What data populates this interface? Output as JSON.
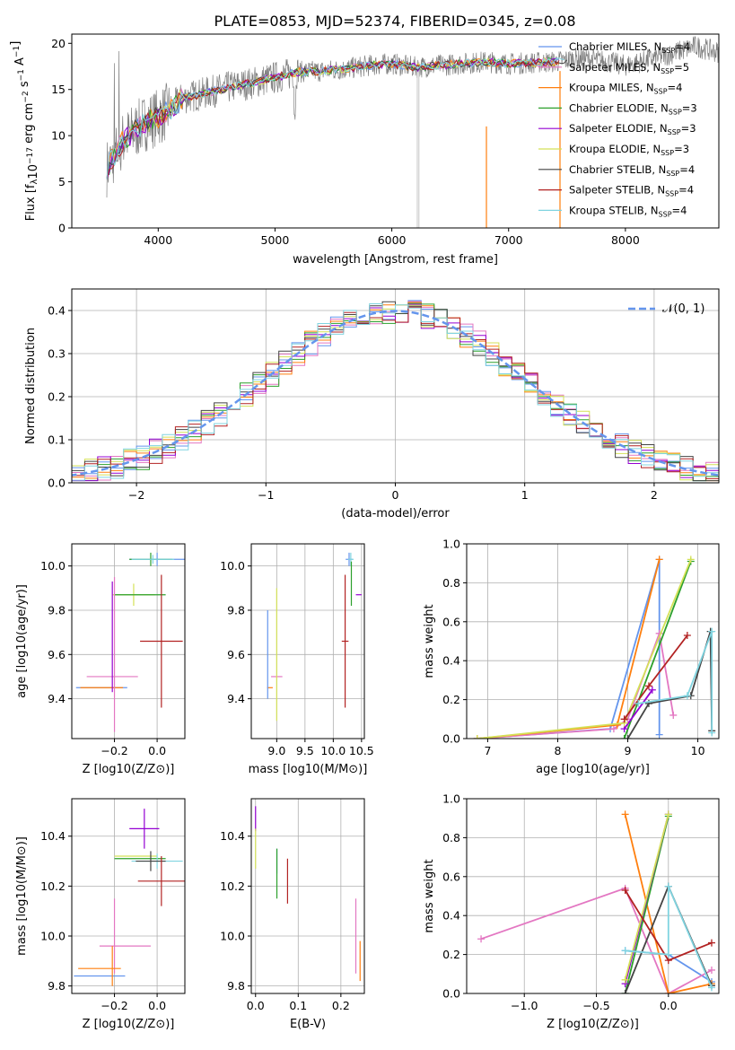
{
  "figure_title": "PLATE=0853, MJD=52374, FIBERID=0345, z=0.08",
  "chart_data": [
    {
      "type": "line",
      "panel": "spectrum",
      "xlabel": "wavelength [Angstrom, rest frame]",
      "ylabel": "Flux [f_λ 10^-17 erg cm^-2 s^-1 A^-1]",
      "xlim": [
        3260,
        8800
      ],
      "ylim": [
        0,
        21
      ],
      "xticks": [
        4000,
        5000,
        6000,
        7000,
        8000
      ],
      "yticks": [
        0,
        5,
        10,
        15,
        20
      ],
      "grid": false,
      "legend_position": "top-right",
      "data_series": {
        "name": "data",
        "color": "#808080",
        "x": [
          3560,
          3620,
          3700,
          3800,
          3900,
          4000,
          4100,
          4200,
          4400,
          4600,
          4800,
          5000,
          5200,
          5400,
          5600,
          5800,
          6000,
          6200,
          6400,
          6600,
          6800,
          7000,
          7200,
          7400,
          7600,
          7800,
          8000,
          8200,
          8400,
          8600,
          8800
        ],
        "y": [
          6.5,
          7.8,
          9.5,
          10.5,
          11.5,
          12.0,
          12.8,
          14.0,
          14.6,
          15.2,
          15.7,
          16.3,
          16.9,
          17.0,
          17.2,
          17.6,
          17.8,
          17.4,
          17.6,
          17.8,
          18.0,
          17.8,
          17.9,
          18.0,
          18.4,
          18.1,
          17.6,
          18.2,
          18.9,
          19.7,
          19.0
        ]
      },
      "series": [
        {
          "name": "Chabrier MILES",
          "nssp": "4",
          "color": "#6495ED"
        },
        {
          "name": "Salpeter MILES",
          "nssp": "5",
          "color": "#e377c2"
        },
        {
          "name": "Kroupa MILES",
          "nssp": "4",
          "color": "#ff7f0e"
        },
        {
          "name": "Chabrier ELODIE",
          "nssp": "3",
          "color": "#2ca02c"
        },
        {
          "name": "Salpeter ELODIE",
          "nssp": "3",
          "color": "#9400D3"
        },
        {
          "name": "Kroupa ELODIE",
          "nssp": "3",
          "color": "#d4e157"
        },
        {
          "name": "Chabrier STELIB",
          "nssp": "4",
          "color": "#444444"
        },
        {
          "name": "Salpeter STELIB",
          "nssp": "4",
          "color": "#b22222"
        },
        {
          "name": "Kroupa STELIB",
          "nssp": "4",
          "color": "#80d4e0"
        }
      ]
    },
    {
      "type": "histogram",
      "panel": "residuals",
      "xlabel": "(data-model)/error",
      "ylabel": "Normed distribution",
      "xlim": [
        -2.5,
        2.5
      ],
      "ylim": [
        0,
        0.45
      ],
      "xticks": [
        -2,
        -1,
        0,
        1,
        2
      ],
      "yticks": [
        0.0,
        0.1,
        0.2,
        0.3,
        0.4
      ],
      "grid": true,
      "legend": "𝒩(0, 1)",
      "legend_position": "top-right",
      "bin_width": 0.1,
      "curve_color": "#6495ED"
    },
    {
      "type": "scatter",
      "panel": "age-vs-Z",
      "xlabel": "Z [log10(Z/Z⊙)]",
      "ylabel": "age [log10(age/yr)]",
      "xlim": [
        -0.4,
        0.13
      ],
      "ylim": [
        9.22,
        10.1
      ],
      "xticks": [
        -0.2,
        0.0
      ],
      "yticks": [
        9.4,
        9.6,
        9.8,
        10.0
      ],
      "grid": true,
      "points": [
        {
          "x": 0.0,
          "y": 10.03,
          "xerr": 0.13,
          "yerr": 0.03,
          "color": "#6495ED"
        },
        {
          "x": -0.03,
          "y": 10.03,
          "xerr": 0.1,
          "yerr": 0.03,
          "color": "#2ca02c"
        },
        {
          "x": -0.02,
          "y": 10.03,
          "xerr": 0.1,
          "yerr": 0.02,
          "color": "#80d4e0"
        },
        {
          "x": -0.11,
          "y": 9.87,
          "xerr": 0.1,
          "yerr": 0.05,
          "color": "#d4e157"
        },
        {
          "x": -0.08,
          "y": 9.87,
          "xerr": 0.12,
          "yerr": 0.0,
          "color": "#2ca02c"
        },
        {
          "x": 0.02,
          "y": 9.66,
          "xerr": 0.1,
          "yerr": 0.3,
          "color": "#b22222"
        },
        {
          "x": -0.21,
          "y": 9.5,
          "xerr": 0.12,
          "yerr": 0.0,
          "color": "#e377c2"
        },
        {
          "x": -0.26,
          "y": 9.45,
          "xerr": 0.12,
          "yerr": 0.0,
          "color": "#6495ED"
        },
        {
          "x": -0.26,
          "y": 9.45,
          "xerr": 0.1,
          "yerr": 0.0,
          "color": "#ff7f0e"
        },
        {
          "x": -0.2,
          "y": 9.6,
          "xerr": 0.0,
          "yerr": 0.35,
          "color": "#e377c2"
        },
        {
          "x": -0.21,
          "y": 9.68,
          "xerr": 0.0,
          "yerr": 0.25,
          "color": "#9400D3"
        }
      ]
    },
    {
      "type": "scatter",
      "panel": "age-vs-mass",
      "xlabel": "mass [log10(M/M⊙)]",
      "ylabel": "",
      "xlim": [
        8.55,
        10.55
      ],
      "ylim": [
        9.22,
        10.1
      ],
      "xticks": [
        9.0,
        9.5,
        10.0,
        10.5
      ],
      "yticks": [
        9.4,
        9.6,
        9.8,
        10.0
      ],
      "grid": true,
      "points": [
        {
          "x": 10.28,
          "y": 10.03,
          "xerr": 0.06,
          "yerr": 0.03,
          "color": "#6495ED"
        },
        {
          "x": 10.31,
          "y": 10.03,
          "xerr": 0.05,
          "yerr": 0.03,
          "color": "#80d4e0"
        },
        {
          "x": 10.32,
          "y": 9.92,
          "xerr": 0.0,
          "yerr": 0.1,
          "color": "#2ca02c"
        },
        {
          "x": 10.45,
          "y": 9.87,
          "xerr": 0.05,
          "yerr": 0.0,
          "color": "#9400D3"
        },
        {
          "x": 10.21,
          "y": 9.66,
          "xerr": 0.06,
          "yerr": 0.3,
          "color": "#b22222"
        },
        {
          "x": 9.0,
          "y": 9.5,
          "xerr": 0.1,
          "yerr": 0.0,
          "color": "#e377c2"
        },
        {
          "x": 8.88,
          "y": 9.45,
          "xerr": 0.05,
          "yerr": 0.0,
          "color": "#ff7f0e"
        },
        {
          "x": 8.84,
          "y": 9.6,
          "xerr": 0.0,
          "yerr": 0.2,
          "color": "#6495ED"
        },
        {
          "x": 9.0,
          "y": 9.6,
          "xerr": 0.0,
          "yerr": 0.3,
          "color": "#d4e157"
        }
      ]
    },
    {
      "type": "line",
      "panel": "mass-weight-vs-age",
      "xlabel": "age [log10(age/yr)]",
      "ylabel": "mass weight",
      "xlim": [
        6.7,
        10.3
      ],
      "ylim": [
        0,
        1.0
      ],
      "xticks": [
        7,
        8,
        9,
        10
      ],
      "yticks": [
        0.0,
        0.2,
        0.4,
        0.6,
        0.8,
        1.0
      ],
      "grid": true,
      "series": [
        {
          "name": "Chabrier MILES",
          "color": "#6495ED",
          "x": [
            6.85,
            8.75,
            9.45,
            9.45
          ],
          "y": [
            0.0,
            0.05,
            0.92,
            0.02
          ]
        },
        {
          "name": "Salpeter MILES",
          "color": "#e377c2",
          "x": [
            6.85,
            8.8,
            9.0,
            9.45,
            9.65
          ],
          "y": [
            0.0,
            0.05,
            0.1,
            0.54,
            0.12
          ]
        },
        {
          "name": "Kroupa MILES",
          "color": "#ff7f0e",
          "x": [
            6.85,
            8.85,
            9.45
          ],
          "y": [
            0.0,
            0.07,
            0.92
          ]
        },
        {
          "name": "Chabrier ELODIE",
          "color": "#2ca02c",
          "x": [
            8.95,
            9.9
          ],
          "y": [
            0.0,
            0.91
          ]
        },
        {
          "name": "Salpeter ELODIE",
          "color": "#9400D3",
          "x": [
            8.95,
            9.35
          ],
          "y": [
            0.05,
            0.25
          ]
        },
        {
          "name": "Kroupa ELODIE",
          "color": "#d4e157",
          "x": [
            6.85,
            8.95,
            9.9
          ],
          "y": [
            0.0,
            0.08,
            0.92
          ]
        },
        {
          "name": "Chabrier STELIB",
          "color": "#444444",
          "x": [
            9.0,
            9.3,
            9.9,
            10.18,
            10.2
          ],
          "y": [
            0.0,
            0.18,
            0.22,
            0.55,
            0.04
          ]
        },
        {
          "name": "Salpeter STELIB",
          "color": "#b22222",
          "x": [
            8.95,
            9.3,
            9.85
          ],
          "y": [
            0.1,
            0.27,
            0.53
          ]
        },
        {
          "name": "Kroupa STELIB",
          "color": "#80d4e0",
          "x": [
            9.15,
            9.85,
            10.2,
            10.2
          ],
          "y": [
            0.18,
            0.22,
            0.55,
            0.03
          ]
        }
      ]
    },
    {
      "type": "scatter",
      "panel": "mass-vs-Z",
      "xlabel": "Z [log10(Z/Z⊙)]",
      "ylabel": "mass [log10(M/M⊙)]",
      "xlim": [
        -0.4,
        0.13
      ],
      "ylim": [
        9.77,
        10.55
      ],
      "xticks": [
        -0.2,
        0.0
      ],
      "yticks": [
        9.8,
        10.0,
        10.2,
        10.4
      ],
      "grid": true,
      "points": [
        {
          "x": -0.06,
          "y": 10.43,
          "xerr": 0.07,
          "yerr": 0.08,
          "color": "#9400D3"
        },
        {
          "x": -0.1,
          "y": 10.32,
          "xerr": 0.1,
          "yerr": 0.0,
          "color": "#d4e157"
        },
        {
          "x": -0.08,
          "y": 10.31,
          "xerr": 0.12,
          "yerr": 0.0,
          "color": "#2ca02c"
        },
        {
          "x": 0.0,
          "y": 10.3,
          "xerr": 0.12,
          "yerr": 0.03,
          "color": "#80d4e0"
        },
        {
          "x": -0.03,
          "y": 10.3,
          "xerr": 0.07,
          "yerr": 0.04,
          "color": "#444444"
        },
        {
          "x": 0.02,
          "y": 10.22,
          "xerr": 0.11,
          "yerr": 0.1,
          "color": "#b22222"
        },
        {
          "x": -0.2,
          "y": 10.0,
          "xerr": 0.0,
          "yerr": 0.15,
          "color": "#e377c2"
        },
        {
          "x": -0.15,
          "y": 9.96,
          "xerr": 0.12,
          "yerr": 0.0,
          "color": "#e377c2"
        },
        {
          "x": -0.27,
          "y": 9.87,
          "xerr": 0.1,
          "yerr": 0.0,
          "color": "#ff7f0e"
        },
        {
          "x": -0.27,
          "y": 9.84,
          "xerr": 0.12,
          "yerr": 0.0,
          "color": "#6495ED"
        },
        {
          "x": -0.21,
          "y": 9.88,
          "xerr": 0.0,
          "yerr": 0.08,
          "color": "#ff7f0e"
        }
      ]
    },
    {
      "type": "scatter",
      "panel": "mass-vs-EBV",
      "xlabel": "E(B-V)",
      "ylabel": "",
      "xlim": [
        -0.01,
        0.255
      ],
      "ylim": [
        9.77,
        10.55
      ],
      "xticks": [
        0.0,
        0.1,
        0.2
      ],
      "yticks": [
        9.8,
        10.0,
        10.2,
        10.4
      ],
      "grid": true,
      "points": [
        {
          "x": 0.0,
          "y": 10.47,
          "xerr": 0.0,
          "yerr": 0.05,
          "color": "#9400D3"
        },
        {
          "x": 0.0,
          "y": 10.35,
          "xerr": 0.0,
          "yerr": 0.08,
          "color": "#d4e157"
        },
        {
          "x": 0.05,
          "y": 10.3,
          "xerr": 0.0,
          "yerr": 0.05,
          "color": "#6495ED"
        },
        {
          "x": 0.05,
          "y": 10.25,
          "xerr": 0.0,
          "yerr": 0.1,
          "color": "#2ca02c"
        },
        {
          "x": 0.075,
          "y": 10.22,
          "xerr": 0.0,
          "yerr": 0.09,
          "color": "#b22222"
        },
        {
          "x": 0.235,
          "y": 10.0,
          "xerr": 0.0,
          "yerr": 0.15,
          "color": "#e377c2"
        },
        {
          "x": 0.245,
          "y": 9.9,
          "xerr": 0.0,
          "yerr": 0.08,
          "color": "#ff7f0e"
        }
      ]
    },
    {
      "type": "line",
      "panel": "mass-weight-vs-Z",
      "xlabel": "Z [log10(Z/Z⊙)]",
      "ylabel": "mass weight",
      "xlim": [
        -1.4,
        0.35
      ],
      "ylim": [
        0,
        1.0
      ],
      "xticks": [
        -1.0,
        -0.5,
        0.0
      ],
      "yticks": [
        0.0,
        0.2,
        0.4,
        0.6,
        0.8,
        1.0
      ],
      "grid": true,
      "series": [
        {
          "name": "Chabrier MILES",
          "color": "#6495ED",
          "x": [
            -0.3,
            0.0,
            0.3
          ],
          "y": [
            0.22,
            0.2,
            0.06
          ]
        },
        {
          "name": "Salpeter MILES",
          "color": "#e377c2",
          "x": [
            -1.3,
            -0.3,
            0.0,
            0.3
          ],
          "y": [
            0.28,
            0.54,
            0.0,
            0.12
          ]
        },
        {
          "name": "Kroupa MILES",
          "color": "#ff7f0e",
          "x": [
            -0.3,
            0.0,
            0.3
          ],
          "y": [
            0.92,
            0.0,
            0.05
          ]
        },
        {
          "name": "Chabrier ELODIE",
          "color": "#2ca02c",
          "x": [
            -0.3,
            0.0
          ],
          "y": [
            0.0,
            0.91
          ]
        },
        {
          "name": "Salpeter ELODIE",
          "color": "#9400D3",
          "x": [
            -0.3,
            0.0
          ],
          "y": [
            0.05,
            0.92
          ]
        },
        {
          "name": "Kroupa ELODIE",
          "color": "#d4e157",
          "x": [
            -0.3,
            0.0
          ],
          "y": [
            0.07,
            0.92
          ]
        },
        {
          "name": "Chabrier STELIB",
          "color": "#444444",
          "x": [
            -0.3,
            0.0,
            0.3
          ],
          "y": [
            0.0,
            0.55,
            0.04
          ]
        },
        {
          "name": "Salpeter STELIB",
          "color": "#b22222",
          "x": [
            -0.3,
            0.0,
            0.3
          ],
          "y": [
            0.53,
            0.17,
            0.26
          ]
        },
        {
          "name": "Kroupa STELIB",
          "color": "#80d4e0",
          "x": [
            -0.3,
            0.0,
            0.0,
            0.3
          ],
          "y": [
            0.22,
            0.2,
            0.55,
            0.03
          ]
        }
      ]
    }
  ]
}
